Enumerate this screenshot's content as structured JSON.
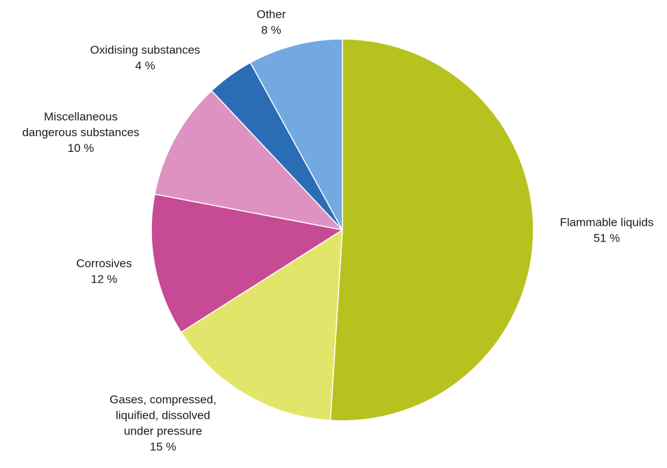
{
  "chart_data": {
    "type": "pie",
    "slices": [
      {
        "label": [
          "Flammable liquids"
        ],
        "value_label": "51 %",
        "value": 51,
        "color": "#b7c21f"
      },
      {
        "label": [
          "Gases, compressed,",
          "liquified, dissolved",
          "under pressure"
        ],
        "value_label": "15 %",
        "value": 15,
        "color": "#e1e66b"
      },
      {
        "label": [
          "Corrosives"
        ],
        "value_label": "12 %",
        "value": 12,
        "color": "#c64a94"
      },
      {
        "label": [
          "Miscellaneous",
          "dangerous substances"
        ],
        "value_label": "10 %",
        "value": 10,
        "color": "#de92c2"
      },
      {
        "label": [
          "Oxidising substances"
        ],
        "value_label": "4 %",
        "value": 4,
        "color": "#2a6db5"
      },
      {
        "label": [
          "Other"
        ],
        "value_label": "8 %",
        "value": 8,
        "color": "#73a9e0"
      }
    ],
    "start_angle": "12 o'clock",
    "direction": "clockwise",
    "legend": "none",
    "data_labels": "outside"
  }
}
